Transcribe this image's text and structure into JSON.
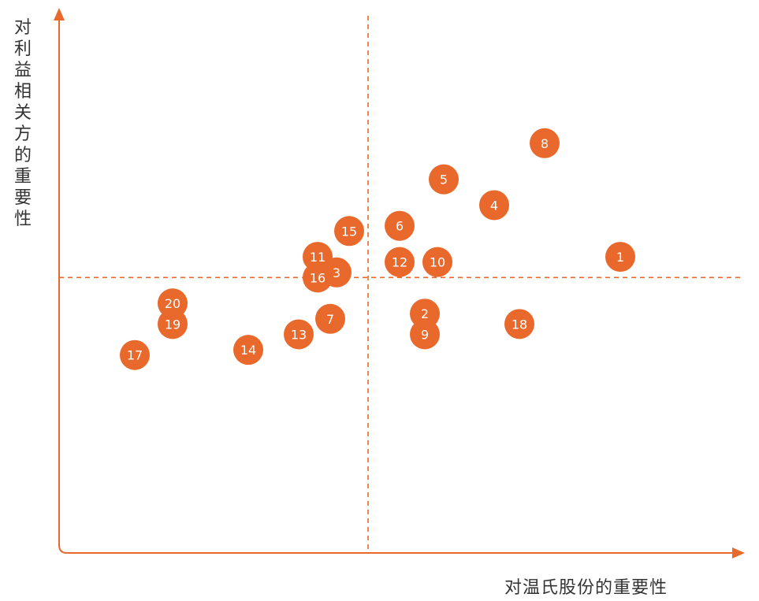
{
  "chart_data": {
    "type": "scatter",
    "xlabel": "对温氏股份的重要性",
    "ylabel": "对利益相关方的重要性",
    "xlim": [
      0,
      10
    ],
    "ylim": [
      0,
      10
    ],
    "thresholds": {
      "x": 4.9,
      "y": 5.3
    },
    "accent_color": "#E8692B",
    "points": [
      {
        "id": "1",
        "x": 8.9,
        "y": 5.7
      },
      {
        "id": "2",
        "x": 5.8,
        "y": 4.6
      },
      {
        "id": "3",
        "x": 4.4,
        "y": 5.4
      },
      {
        "id": "4",
        "x": 6.9,
        "y": 6.7
      },
      {
        "id": "5",
        "x": 6.1,
        "y": 7.2
      },
      {
        "id": "6",
        "x": 5.4,
        "y": 6.3
      },
      {
        "id": "7",
        "x": 4.3,
        "y": 4.5
      },
      {
        "id": "8",
        "x": 7.7,
        "y": 7.9
      },
      {
        "id": "9",
        "x": 5.8,
        "y": 4.2
      },
      {
        "id": "10",
        "x": 6.0,
        "y": 5.6
      },
      {
        "id": "11",
        "x": 4.1,
        "y": 5.7
      },
      {
        "id": "12",
        "x": 5.4,
        "y": 5.6
      },
      {
        "id": "13",
        "x": 3.8,
        "y": 4.2
      },
      {
        "id": "14",
        "x": 3.0,
        "y": 3.9
      },
      {
        "id": "15",
        "x": 4.6,
        "y": 6.2
      },
      {
        "id": "16",
        "x": 4.1,
        "y": 5.3
      },
      {
        "id": "17",
        "x": 1.2,
        "y": 3.8
      },
      {
        "id": "18",
        "x": 7.3,
        "y": 4.4
      },
      {
        "id": "19",
        "x": 1.8,
        "y": 4.4
      },
      {
        "id": "20",
        "x": 1.8,
        "y": 4.8
      }
    ]
  }
}
